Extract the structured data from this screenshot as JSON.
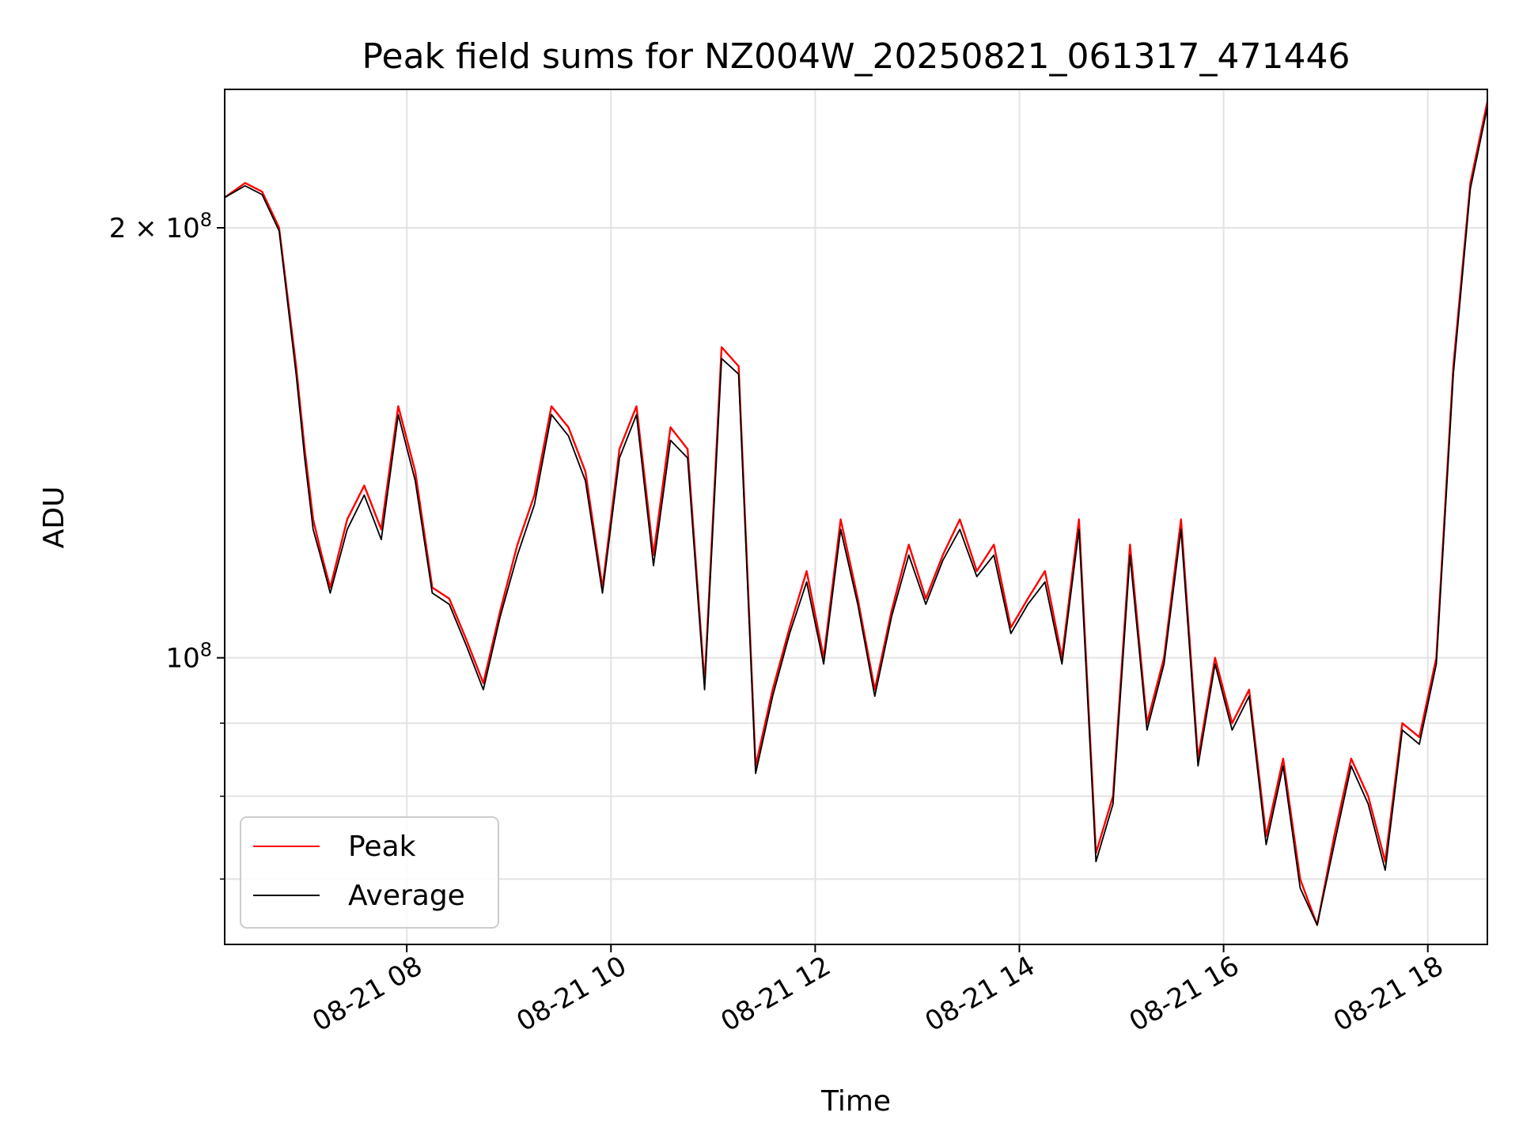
{
  "chart_data": {
    "type": "line",
    "title": "Peak field sums for NZ004W_20250821_061317_471446",
    "xlabel": "Time",
    "ylabel": "ADU",
    "y_scale": "log",
    "grid": true,
    "legend_placement": "lower-left",
    "xlim": [
      "2025-08-21 06:13",
      "2025-08-21 18:35"
    ],
    "ylim": [
      63000000,
      250000000
    ],
    "x_ticks": [
      {
        "value": "2025-08-21 08:00",
        "label": "08-21 08"
      },
      {
        "value": "2025-08-21 10:00",
        "label": "08-21 10"
      },
      {
        "value": "2025-08-21 12:00",
        "label": "08-21 12"
      },
      {
        "value": "2025-08-21 14:00",
        "label": "08-21 14"
      },
      {
        "value": "2025-08-21 16:00",
        "label": "08-21 16"
      },
      {
        "value": "2025-08-21 18:00",
        "label": "08-21 18"
      }
    ],
    "y_ticks": [
      {
        "value": 100000000,
        "label_base": "10",
        "label_exp": "8",
        "label_mult": ""
      },
      {
        "value": 200000000,
        "label_base": "10",
        "label_exp": "8",
        "label_mult": "2 × "
      }
    ],
    "y_minor_ticks": [
      70000000,
      80000000,
      90000000
    ],
    "x": [
      "06:13",
      "06:25",
      "06:35",
      "06:45",
      "06:55",
      "07:00",
      "07:05",
      "07:10",
      "07:15",
      "07:25",
      "07:35",
      "07:45",
      "07:55",
      "08:05",
      "08:15",
      "08:25",
      "08:35",
      "08:45",
      "08:55",
      "09:05",
      "09:15",
      "09:25",
      "09:35",
      "09:45",
      "09:55",
      "10:05",
      "10:15",
      "10:25",
      "10:35",
      "10:45",
      "10:55",
      "11:05",
      "11:15",
      "11:25",
      "11:35",
      "11:45",
      "11:55",
      "12:05",
      "12:15",
      "12:25",
      "12:35",
      "12:45",
      "12:55",
      "13:05",
      "13:15",
      "13:25",
      "13:35",
      "13:45",
      "13:55",
      "14:05",
      "14:15",
      "14:25",
      "14:35",
      "14:45",
      "14:55",
      "15:05",
      "15:15",
      "15:25",
      "15:35",
      "15:45",
      "15:55",
      "16:05",
      "16:15",
      "16:25",
      "16:35",
      "16:45",
      "16:55",
      "17:05",
      "17:15",
      "17:25",
      "17:35",
      "17:45",
      "17:55",
      "18:05",
      "18:15",
      "18:25",
      "18:35"
    ],
    "series": [
      {
        "name": "Peak",
        "color": "#ff0000",
        "values": [
          210,
          215,
          212,
          200,
          160,
          140,
          125,
          118,
          112,
          125,
          132,
          123,
          150,
          135,
          112,
          110,
          103,
          96,
          108,
          120,
          130,
          150,
          145,
          135,
          112,
          140,
          150,
          118,
          145,
          140,
          96,
          165,
          160,
          84,
          95,
          105,
          115,
          100,
          125,
          110,
          95,
          108,
          120,
          110,
          118,
          125,
          115,
          120,
          105,
          110,
          115,
          100,
          125,
          73,
          80,
          120,
          90,
          100,
          125,
          85,
          100,
          90,
          95,
          75,
          85,
          70,
          65,
          75,
          85,
          80,
          72,
          90,
          88,
          100,
          160,
          215,
          245
        ]
      },
      {
        "name": "Average",
        "color": "#000000",
        "values": [
          210,
          214,
          211,
          199,
          158,
          138,
          123,
          117,
          111,
          123,
          130,
          121,
          148,
          133,
          111,
          109,
          102,
          95,
          107,
          118,
          128,
          148,
          143,
          133,
          111,
          138,
          148,
          116,
          142,
          138,
          95,
          162,
          158,
          83,
          94,
          104,
          113,
          99,
          123,
          109,
          94,
          107,
          118,
          109,
          117,
          123,
          114,
          118,
          104,
          109,
          113,
          99,
          123,
          72,
          79,
          118,
          89,
          99,
          123,
          84,
          99,
          89,
          94,
          74,
          84,
          69,
          65,
          74,
          84,
          79,
          71,
          89,
          87,
          99,
          158,
          213,
          243
        ]
      }
    ]
  }
}
